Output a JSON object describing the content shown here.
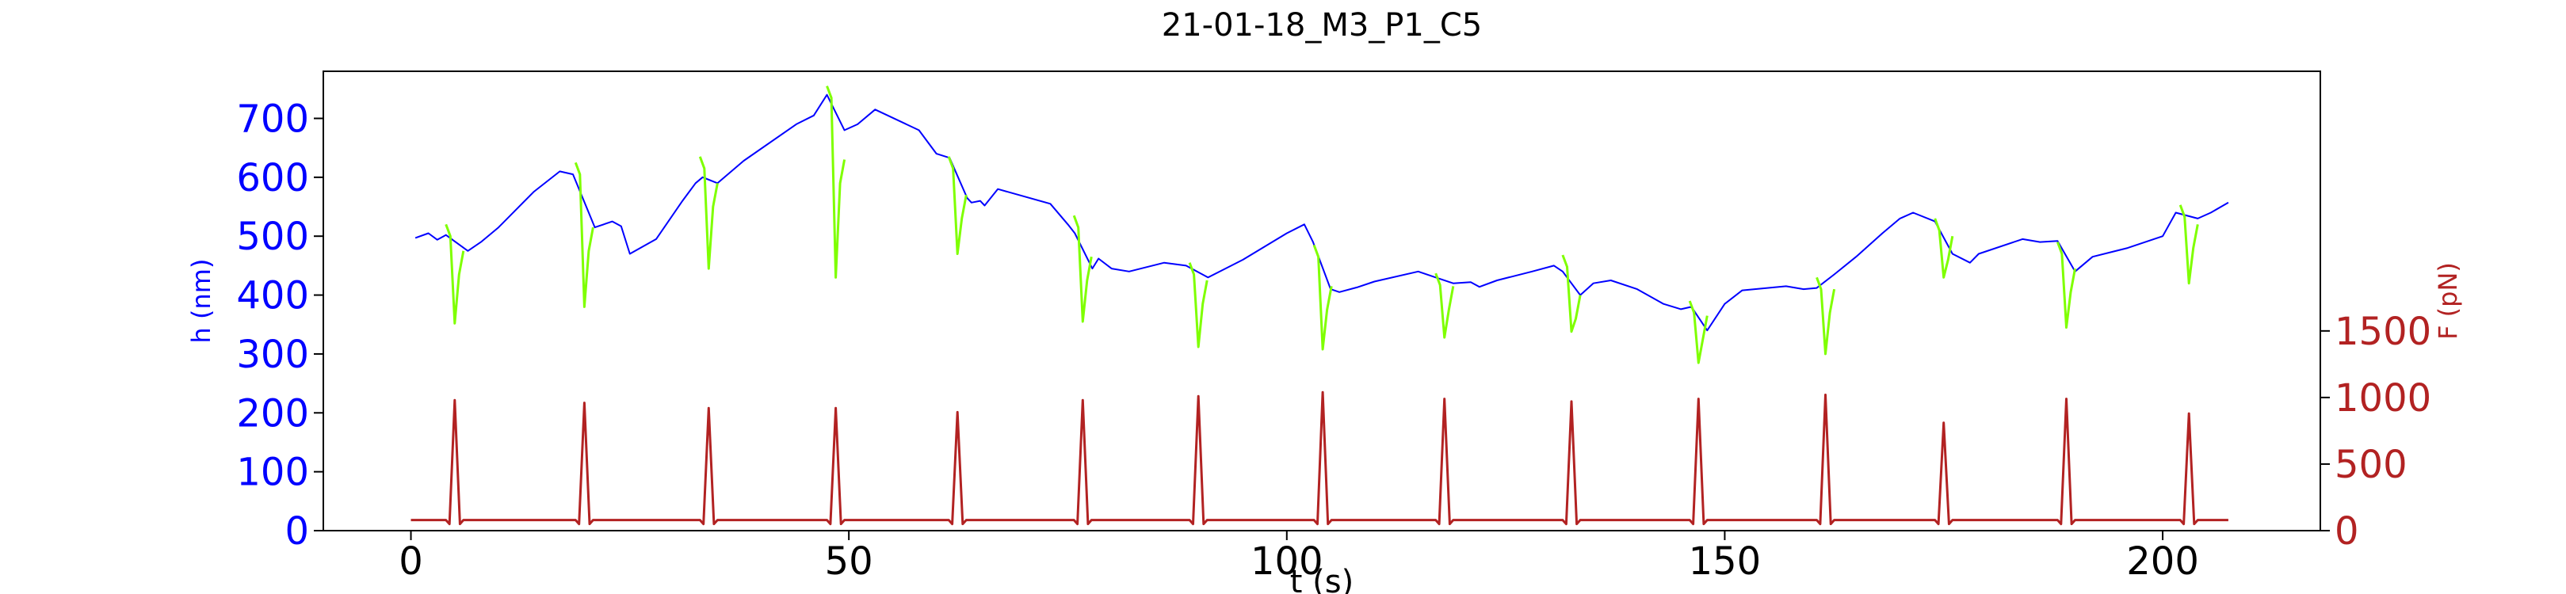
{
  "chart_data": {
    "type": "line",
    "title": "21-01-18_M3_P1_C5",
    "xlabel": "t (s)",
    "ylabel": "h (nm)",
    "y2label": "F (pN)",
    "xlim": [
      -10,
      218
    ],
    "ylim": [
      0,
      780
    ],
    "y2lim": [
      0,
      3450
    ],
    "xticks": [
      0,
      50,
      100,
      150,
      200
    ],
    "yticks": [
      0,
      100,
      200,
      300,
      400,
      500,
      600,
      700
    ],
    "y2ticks": [
      0,
      500,
      1000,
      1500
    ],
    "grid": false,
    "colors": {
      "height": "#0000ff",
      "compression": "#7fff00",
      "force": "#b22222",
      "axis": "#000000"
    },
    "pulses": [
      {
        "t": 5.0,
        "h_before": 520,
        "h_min": 352,
        "h_after": 475,
        "peak_force": 980
      },
      {
        "t": 19.8,
        "h_before": 625,
        "h_min": 380,
        "h_after": 515,
        "peak_force": 960
      },
      {
        "t": 34.0,
        "h_before": 635,
        "h_min": 445,
        "h_after": 590,
        "peak_force": 920
      },
      {
        "t": 48.5,
        "h_before": 755,
        "h_min": 430,
        "h_after": 630,
        "peak_force": 920
      },
      {
        "t": 62.4,
        "h_before": 635,
        "h_min": 470,
        "h_after": 570,
        "peak_force": 890
      },
      {
        "t": 76.7,
        "h_before": 535,
        "h_min": 355,
        "h_after": 465,
        "peak_force": 980
      },
      {
        "t": 89.9,
        "h_before": 455,
        "h_min": 312,
        "h_after": 425,
        "peak_force": 1010
      },
      {
        "t": 104.1,
        "h_before": 485,
        "h_min": 308,
        "h_after": 415,
        "peak_force": 1040
      },
      {
        "t": 118.0,
        "h_before": 437,
        "h_min": 328,
        "h_after": 415,
        "peak_force": 990
      },
      {
        "t": 132.5,
        "h_before": 468,
        "h_min": 338,
        "h_after": 400,
        "peak_force": 970
      },
      {
        "t": 147.0,
        "h_before": 390,
        "h_min": 285,
        "h_after": 365,
        "peak_force": 990
      },
      {
        "t": 161.5,
        "h_before": 430,
        "h_min": 300,
        "h_after": 410,
        "peak_force": 1020
      },
      {
        "t": 175.0,
        "h_before": 530,
        "h_min": 430,
        "h_after": 500,
        "peak_force": 810
      },
      {
        "t": 189.0,
        "h_before": 490,
        "h_min": 345,
        "h_after": 445,
        "peak_force": 990
      },
      {
        "t": 203.0,
        "h_before": 553,
        "h_min": 420,
        "h_after": 520,
        "peak_force": 880
      }
    ],
    "height_relaxation": [
      [
        0.5,
        497
      ],
      [
        2,
        505
      ],
      [
        3,
        494
      ],
      [
        4,
        502
      ],
      [
        6.5,
        475
      ],
      [
        8,
        490
      ],
      [
        10,
        515
      ],
      [
        14,
        575
      ],
      [
        17,
        610
      ],
      [
        18.5,
        605
      ],
      [
        21,
        515
      ],
      [
        23,
        525
      ],
      [
        24,
        517
      ],
      [
        25,
        470
      ],
      [
        28,
        495
      ],
      [
        31,
        560
      ],
      [
        32.5,
        590
      ],
      [
        33.3,
        600
      ],
      [
        35,
        590
      ],
      [
        38,
        628
      ],
      [
        44,
        690
      ],
      [
        46,
        705
      ],
      [
        47.5,
        740
      ],
      [
        49.5,
        680
      ],
      [
        51,
        690
      ],
      [
        53,
        715
      ],
      [
        58,
        680
      ],
      [
        60,
        640
      ],
      [
        61.5,
        633
      ],
      [
        63.5,
        565
      ],
      [
        64,
        557
      ],
      [
        65,
        560
      ],
      [
        65.5,
        552
      ],
      [
        67,
        580
      ],
      [
        73,
        555
      ],
      [
        75,
        520
      ],
      [
        75.8,
        505
      ],
      [
        77.8,
        445
      ],
      [
        78.5,
        462
      ],
      [
        80,
        445
      ],
      [
        82,
        440
      ],
      [
        86,
        455
      ],
      [
        88.5,
        450
      ],
      [
        91,
        430
      ],
      [
        93,
        445
      ],
      [
        95,
        460
      ],
      [
        100,
        505
      ],
      [
        102,
        520
      ],
      [
        103,
        490
      ],
      [
        105,
        410
      ],
      [
        106,
        405
      ],
      [
        108,
        413
      ],
      [
        110,
        423
      ],
      [
        115,
        440
      ],
      [
        117,
        430
      ],
      [
        119,
        420
      ],
      [
        121,
        422
      ],
      [
        122,
        414
      ],
      [
        124,
        425
      ],
      [
        128,
        440
      ],
      [
        130.5,
        450
      ],
      [
        131.5,
        440
      ],
      [
        133.5,
        400
      ],
      [
        135,
        420
      ],
      [
        137,
        425
      ],
      [
        140,
        410
      ],
      [
        143,
        385
      ],
      [
        145,
        376
      ],
      [
        146.2,
        380
      ],
      [
        148,
        340
      ],
      [
        150,
        385
      ],
      [
        152,
        408
      ],
      [
        157,
        415
      ],
      [
        159,
        410
      ],
      [
        160.5,
        412
      ],
      [
        162.5,
        435
      ],
      [
        165,
        465
      ],
      [
        168,
        505
      ],
      [
        170,
        530
      ],
      [
        171.5,
        540
      ],
      [
        174,
        525
      ],
      [
        176,
        470
      ],
      [
        178,
        455
      ],
      [
        179,
        470
      ],
      [
        184,
        495
      ],
      [
        186,
        490
      ],
      [
        188,
        492
      ],
      [
        190,
        440
      ],
      [
        192,
        465
      ],
      [
        196,
        480
      ],
      [
        200,
        500
      ],
      [
        201.5,
        540
      ],
      [
        204,
        530
      ],
      [
        205.5,
        540
      ],
      [
        207.5,
        557
      ]
    ],
    "force_baseline": 80,
    "t_end": 207.5
  }
}
